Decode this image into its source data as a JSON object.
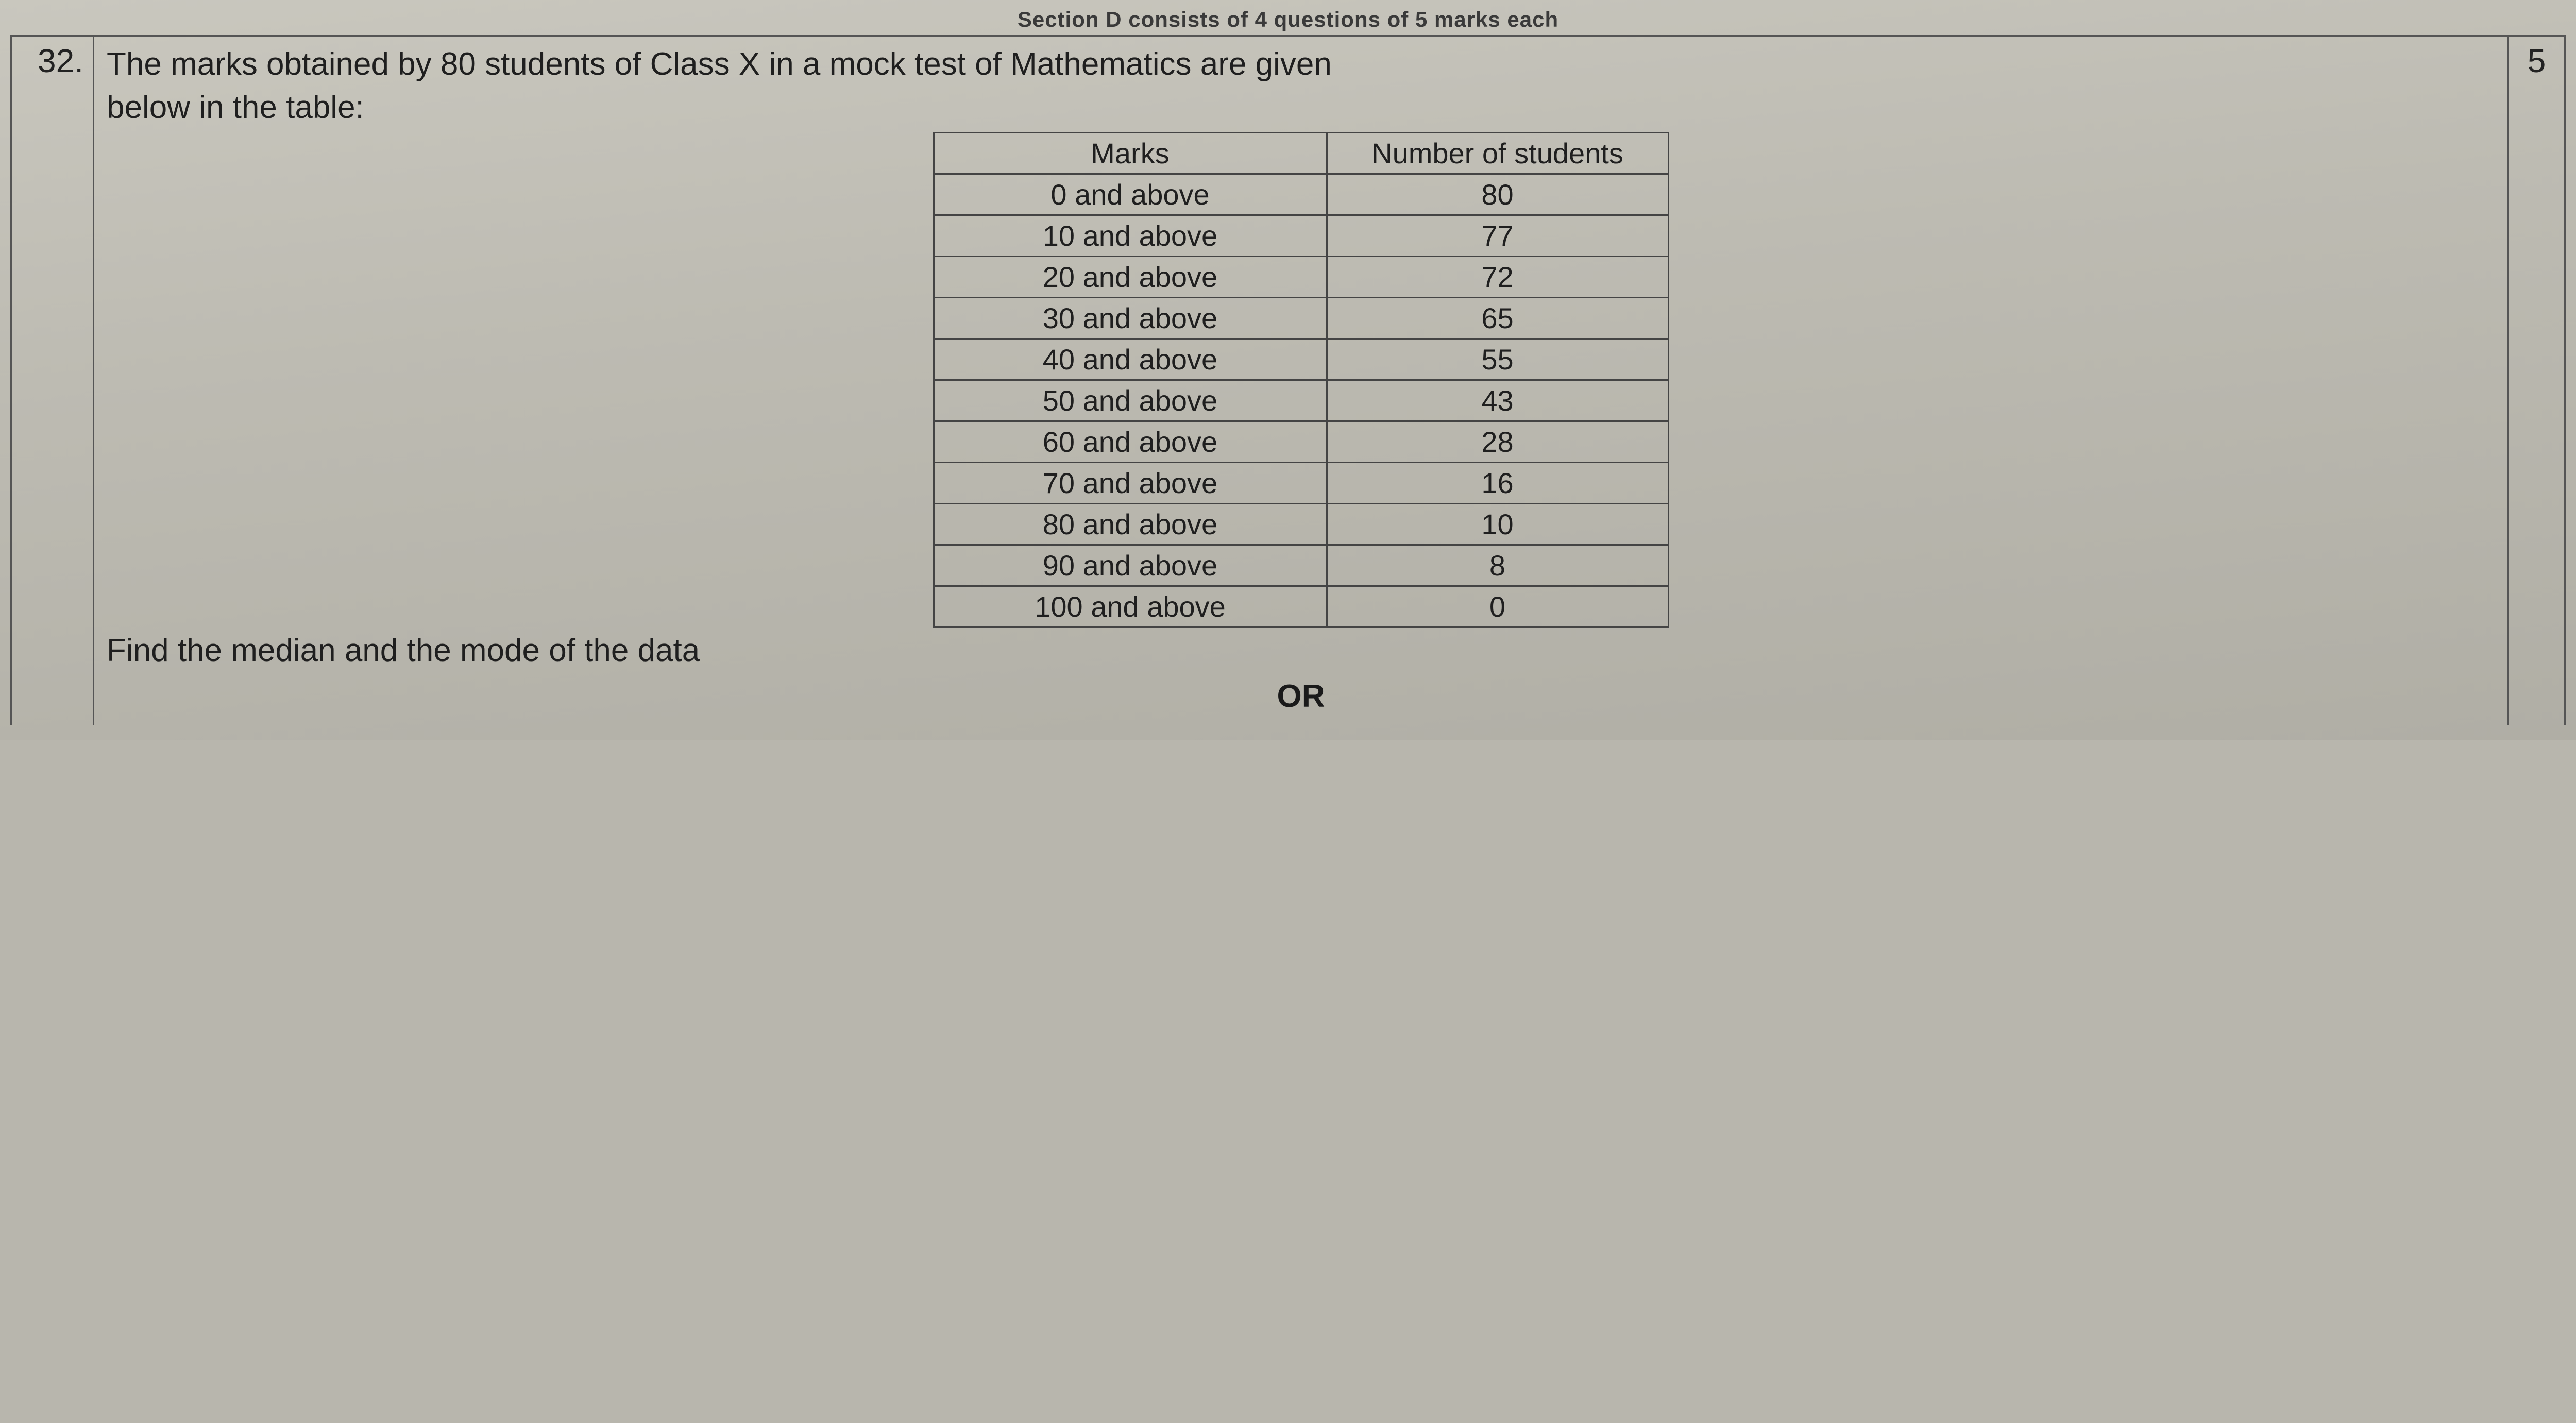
{
  "header_cut_text": "Section D consists of 4 questions of 5 marks each",
  "question_number": "32.",
  "marks_allotted": "5",
  "question_text_line1": "The marks obtained by 80 students of Class X in a mock test of Mathematics are given",
  "question_text_line2": "below in the table:",
  "table": {
    "type": "table",
    "border_color": "#444444",
    "text_color": "#1f1f1f",
    "font_size_pt": 42,
    "columns": [
      "Marks",
      "Number of students"
    ],
    "rows": [
      [
        "0 and above",
        "80"
      ],
      [
        "10 and above",
        "77"
      ],
      [
        "20 and above",
        "72"
      ],
      [
        "30 and above",
        "65"
      ],
      [
        "40 and above",
        "55"
      ],
      [
        "50 and above",
        "43"
      ],
      [
        "60 and above",
        "28"
      ],
      [
        "70 and above",
        "16"
      ],
      [
        "80 and above",
        "10"
      ],
      [
        "90 and above",
        "8"
      ],
      [
        "100 and above",
        "0"
      ]
    ]
  },
  "instruction": "Find the median and the mode of the data",
  "or_label": "OR",
  "colors": {
    "page_bg_top": "#c9c7be",
    "page_bg_bottom": "#b0aea5",
    "rule": "#555555",
    "text": "#1f1f1f"
  }
}
